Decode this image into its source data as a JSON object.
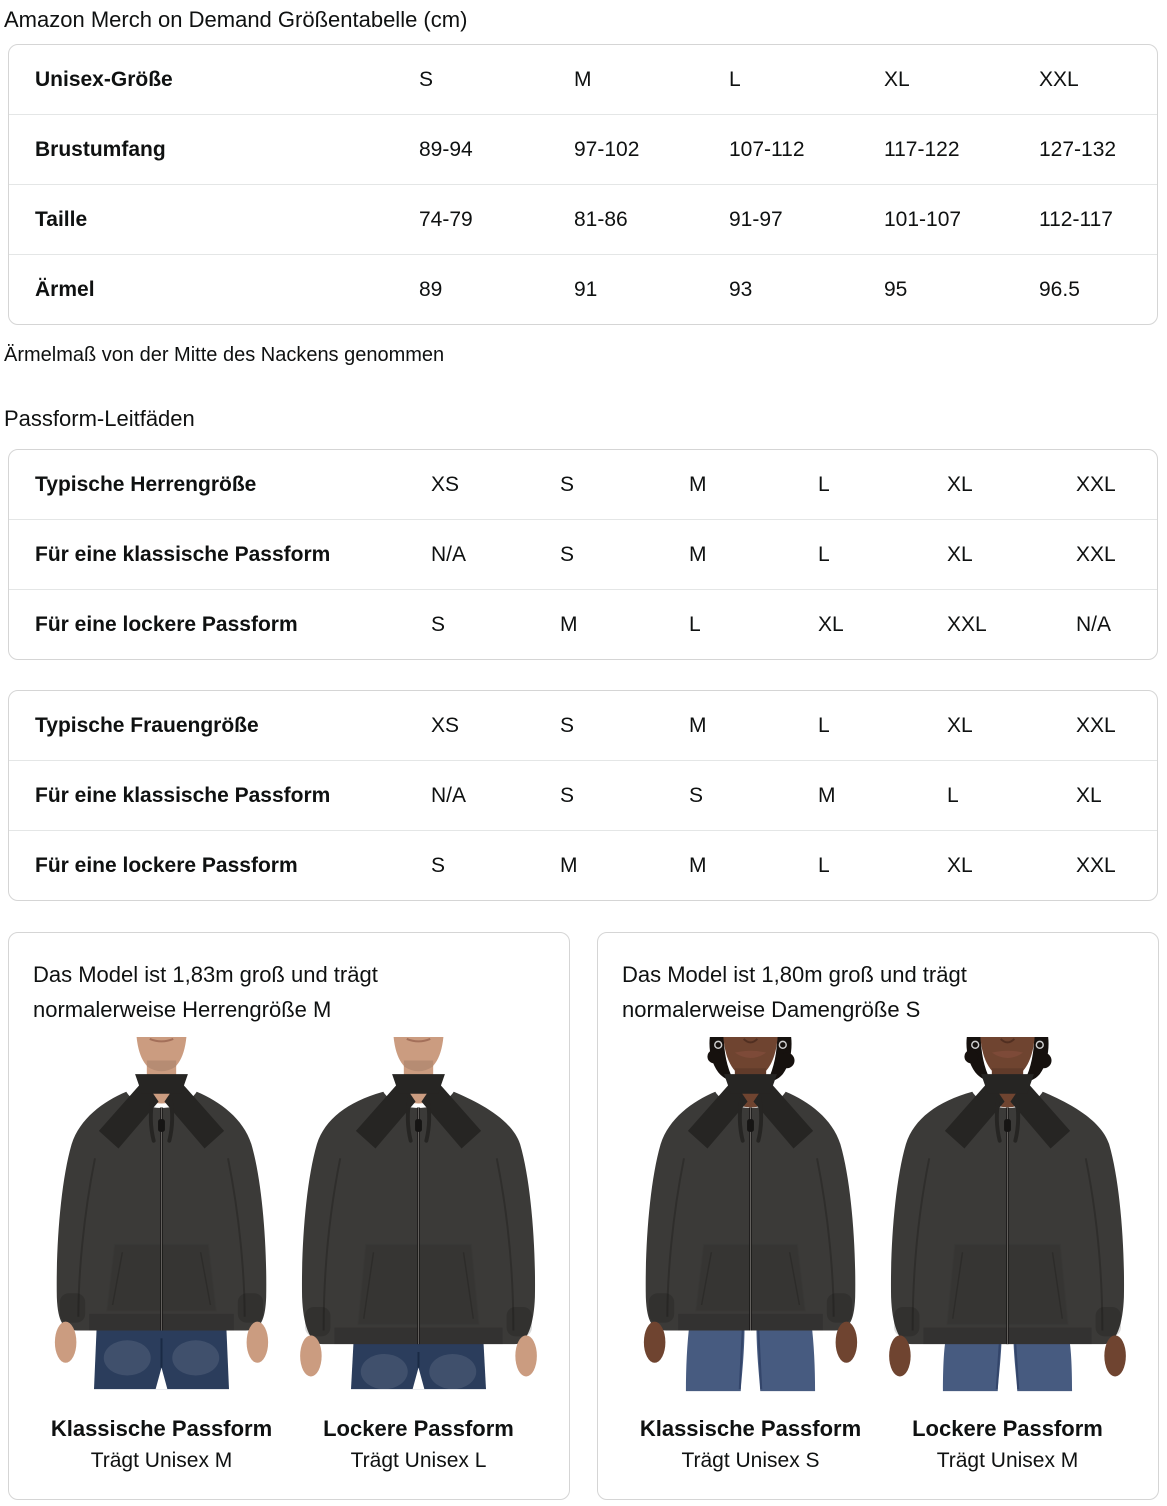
{
  "page": {
    "title": "Amazon Merch on Demand Größentabelle (cm)"
  },
  "size_table": {
    "rows": [
      {
        "label": "Unisex-Größe",
        "values": [
          "S",
          "M",
          "L",
          "XL",
          "XXL"
        ]
      },
      {
        "label": "Brustumfang",
        "values": [
          "89-94",
          "97-102",
          "107-112",
          "117-122",
          "127-132"
        ]
      },
      {
        "label": "Taille",
        "values": [
          "74-79",
          "81-86",
          "91-97",
          "101-107",
          "112-117"
        ]
      },
      {
        "label": "Ärmel",
        "values": [
          "89",
          "91",
          "93",
          "95",
          "96.5"
        ]
      }
    ],
    "note": "Ärmelmaß von der Mitte des Nackens genommen"
  },
  "fit_guides": {
    "heading": "Passform-Leitfäden",
    "tables": [
      {
        "rows": [
          {
            "label": "Typische Herrengröße",
            "values": [
              "XS",
              "S",
              "M",
              "L",
              "XL",
              "XXL"
            ]
          },
          {
            "label": "Für eine klassische Passform",
            "values": [
              "N/A",
              "S",
              "M",
              "L",
              "XL",
              "XXL"
            ]
          },
          {
            "label": "Für eine lockere Passform",
            "values": [
              "S",
              "M",
              "L",
              "XL",
              "XXL",
              "N/A"
            ]
          }
        ]
      },
      {
        "rows": [
          {
            "label": "Typische Frauengröße",
            "values": [
              "XS",
              "S",
              "M",
              "L",
              "XL",
              "XXL"
            ]
          },
          {
            "label": "Für eine klassische Passform",
            "values": [
              "N/A",
              "S",
              "S",
              "M",
              "L",
              "XL"
            ]
          },
          {
            "label": "Für eine lockere Passform",
            "values": [
              "S",
              "M",
              "M",
              "L",
              "XL",
              "XXL"
            ]
          }
        ]
      }
    ]
  },
  "model_cards": [
    {
      "description": "Das Model ist 1,83m groß und trägt normalerweise Herrengröße M",
      "figures": [
        {
          "variant": "male",
          "fit": "classic",
          "caption_bold": "Klassische Passform",
          "caption": "Trägt Unisex M"
        },
        {
          "variant": "male",
          "fit": "loose",
          "caption_bold": "Lockere Passform",
          "caption": "Trägt Unisex L"
        }
      ]
    },
    {
      "description": "Das Model ist 1,80m groß und trägt normalerweise Damengröße S",
      "figures": [
        {
          "variant": "female",
          "fit": "classic",
          "caption_bold": "Klassische Passform",
          "caption": "Trägt Unisex S"
        },
        {
          "variant": "female",
          "fit": "loose",
          "caption_bold": "Lockere Passform",
          "caption": "Trägt Unisex M"
        }
      ]
    }
  ],
  "colors": {
    "text": "#0f1111",
    "table_border": "#d5d5d5",
    "row_divider": "#e4e6e6",
    "hoodie": "#3b3a38",
    "hoodie_dark": "#262523",
    "skin_male": "#cb9c80",
    "skin_female": "#6f4430",
    "hair_female": "#16110e",
    "lips_female": "#7d4a38",
    "jeans_male": "#2b3d5c",
    "jeans_female": "#475b80"
  }
}
